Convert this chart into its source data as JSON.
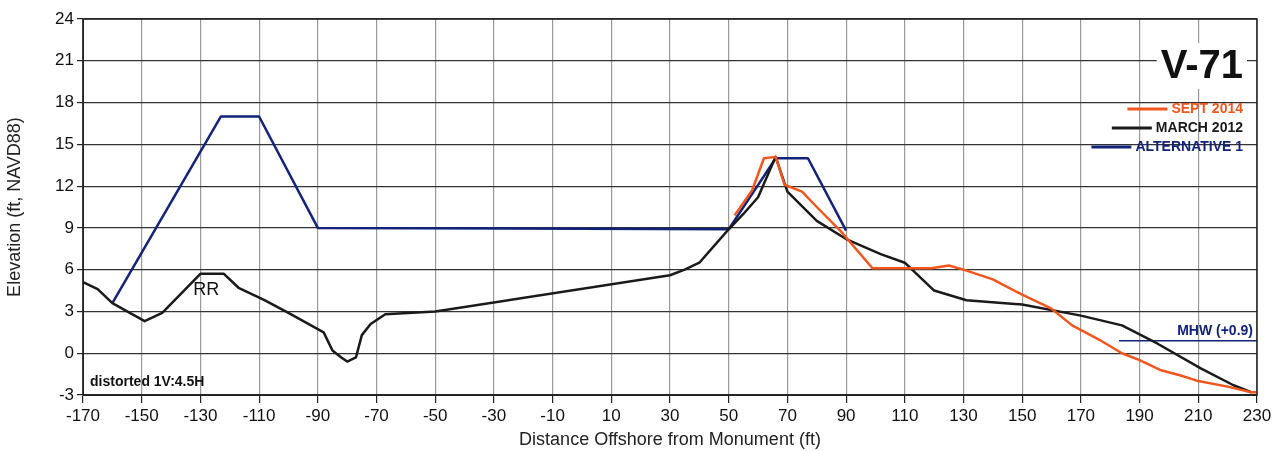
{
  "chart_data": {
    "type": "line",
    "title": "V-71",
    "xlabel": "Distance Offshore from Monument (ft)",
    "ylabel": "Elevation (ft, NAVD88)",
    "xlim": [
      -170,
      230
    ],
    "xticks": [
      -170,
      -150,
      -130,
      -110,
      -90,
      -70,
      -50,
      -30,
      -10,
      10,
      30,
      50,
      70,
      90,
      110,
      130,
      150,
      170,
      190,
      210,
      230
    ],
    "ylim": [
      -3,
      24
    ],
    "yticks": [
      -3,
      0,
      3,
      6,
      9,
      12,
      15,
      18,
      21,
      24
    ],
    "grid": true,
    "legend": "top right",
    "marker": "none",
    "line_style": "solid",
    "series": [
      {
        "name": "SEPT 2014",
        "color": "#f2561d",
        "x": [
          52,
          58,
          62,
          66,
          69,
          75,
          80,
          88,
          99,
          110,
          119,
          125,
          130,
          140,
          150,
          160,
          167,
          176,
          184,
          190,
          197,
          204,
          210,
          220,
          228,
          230
        ],
        "values": [
          9.9,
          11.7,
          14,
          14.1,
          12.1,
          11.6,
          10.5,
          8.8,
          6.1,
          6.1,
          6.1,
          6.3,
          6.0,
          5.3,
          4.2,
          3.2,
          2.0,
          1.0,
          0,
          -0.5,
          -1.2,
          -1.6,
          -2.0,
          -2.4,
          -2.8,
          -2.8
        ]
      },
      {
        "name": "MARCH 2012",
        "color": "#1a1a1a",
        "x": [
          -170,
          -165,
          -160,
          -149,
          -143,
          -130,
          -122,
          -117,
          -108,
          -100,
          -88,
          -85,
          -82,
          -80,
          -77,
          -75,
          -72,
          -67,
          -50,
          30,
          35,
          40,
          50,
          55,
          60,
          66,
          70,
          80,
          90,
          102,
          110,
          120,
          131,
          150,
          170,
          184,
          196,
          211,
          222,
          228
        ],
        "values": [
          5.1,
          4.6,
          3.6,
          2.3,
          2.9,
          5.7,
          5.7,
          4.7,
          3.8,
          2.9,
          1.5,
          0.2,
          -0.3,
          -0.6,
          -0.3,
          1.3,
          2.1,
          2.8,
          3.0,
          5.6,
          6.0,
          6.5,
          8.9,
          10.0,
          11.2,
          14.1,
          11.6,
          9.5,
          8.2,
          7.1,
          6.5,
          4.5,
          3.8,
          3.5,
          2.7,
          2.0,
          0.7,
          -1.1,
          -2.3,
          -2.8
        ]
      },
      {
        "name": "ALTERNATIVE 1",
        "color": "#14237a",
        "x": [
          -160,
          -123,
          -110,
          -90,
          50,
          66,
          77,
          90
        ],
        "values": [
          3.6,
          17,
          17,
          9,
          8.9,
          14,
          14,
          8.8
        ]
      },
      {
        "color": "#14237a",
        "x": [
          183,
          230
        ],
        "values": [
          0.9,
          0.9
        ]
      }
    ],
    "annotations": [
      "RR",
      {
        "text": "MHW (+0.9)",
        "x": 230,
        "y": 0.9
      },
      "distorted 1V:4.5H"
    ]
  }
}
